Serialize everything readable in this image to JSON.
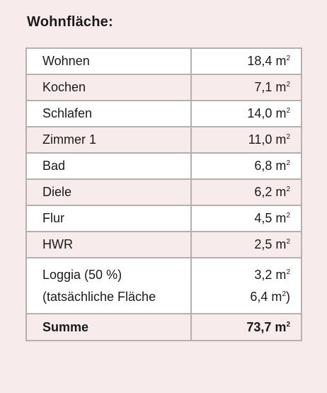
{
  "title": "Wohnfläche:",
  "rows": [
    {
      "room": "Wohnen",
      "value": "18,4 m",
      "unit_exp": "2"
    },
    {
      "room": "Kochen",
      "value": "7,1 m",
      "unit_exp": "2"
    },
    {
      "room": "Schlafen",
      "value": "14,0 m",
      "unit_exp": "2"
    },
    {
      "room": "Zimmer 1",
      "value": "11,0 m",
      "unit_exp": "2"
    },
    {
      "room": "Bad",
      "value": "6,8 m",
      "unit_exp": "2"
    },
    {
      "room": "Diele",
      "value": "6,2 m",
      "unit_exp": "2"
    },
    {
      "room": "Flur",
      "value": "4,5 m",
      "unit_exp": "2"
    },
    {
      "room": "HWR",
      "value": "2,5 m",
      "unit_exp": "2"
    }
  ],
  "loggia": {
    "room": "Loggia (50 %)",
    "room_note": "(tatsächliche Fläche",
    "value": "3,2 m",
    "unit_exp": "2",
    "actual_value": "6,4 m",
    "actual_exp": "2",
    "actual_close": ")"
  },
  "total": {
    "label": "Summe",
    "value": "73,7 m",
    "unit_exp": "2"
  }
}
